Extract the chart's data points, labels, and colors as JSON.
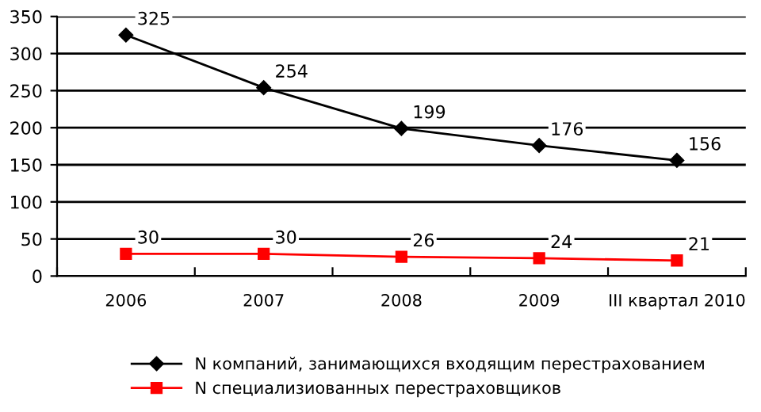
{
  "chart_data": {
    "type": "line",
    "categories": [
      "2006",
      "2007",
      "2008",
      "2009",
      "III квартал 2010"
    ],
    "series": [
      {
        "name": "N компаний, занимающихся входящим перестрахованием",
        "color": "#000000",
        "marker": "diamond",
        "values": [
          325,
          254,
          199,
          176,
          156
        ]
      },
      {
        "name": "N специализиованных перестраховщиков",
        "color": "#ff0000",
        "marker": "square",
        "values": [
          30,
          30,
          26,
          24,
          21
        ]
      }
    ],
    "ylim": [
      0,
      350
    ],
    "yticks": [
      0,
      50,
      100,
      150,
      200,
      250,
      300,
      350
    ],
    "grid": "y",
    "legend": "bottom",
    "data_labels": true
  }
}
